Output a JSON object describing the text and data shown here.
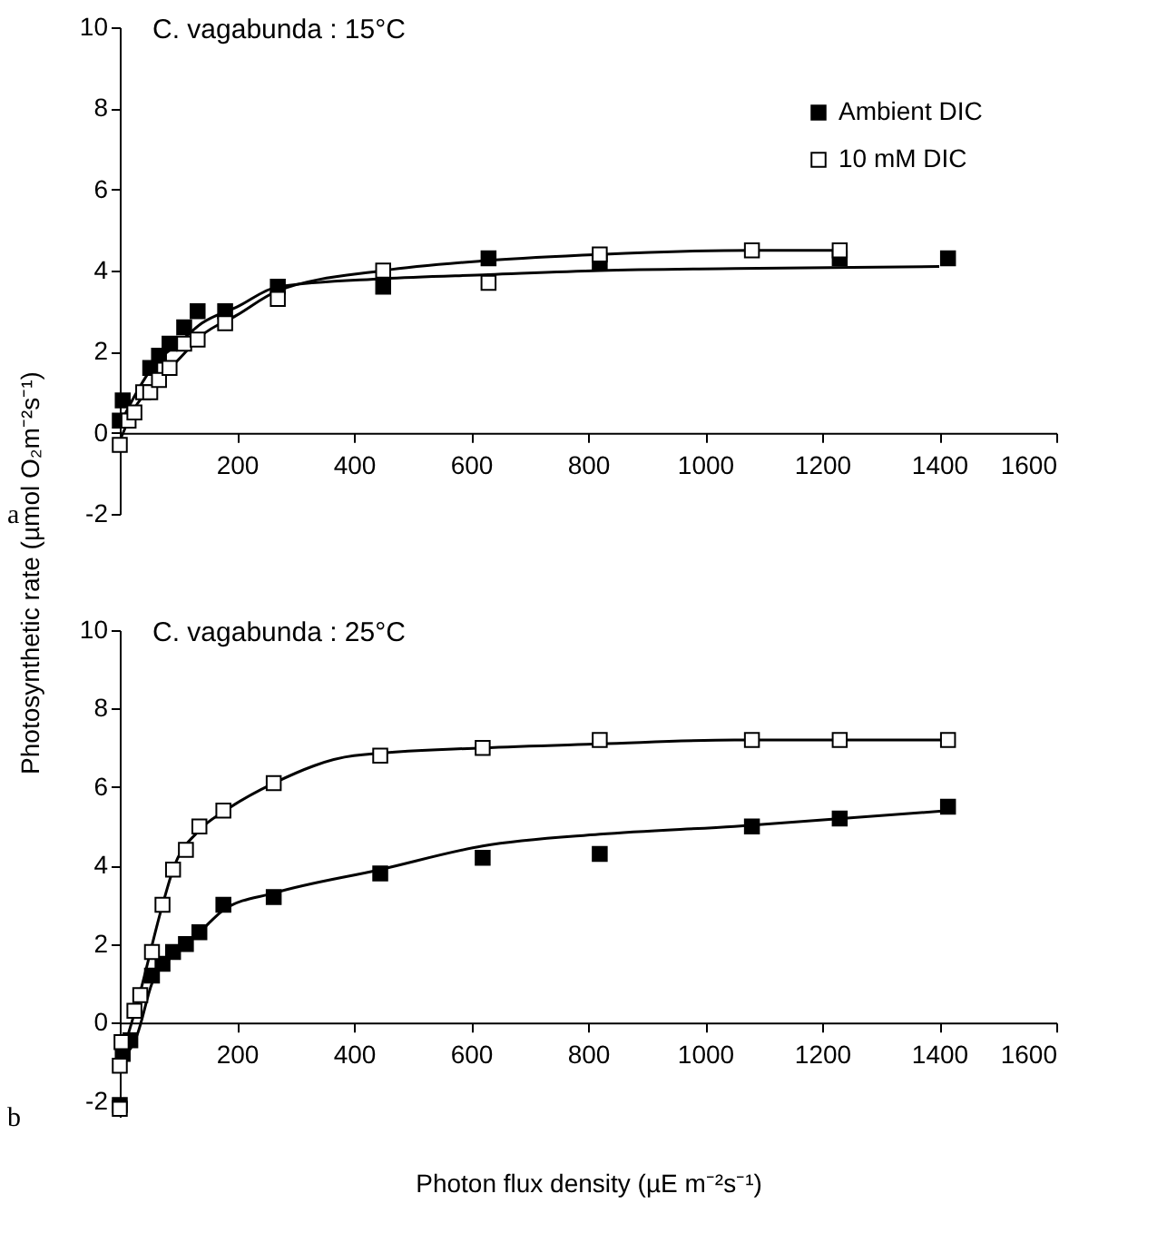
{
  "chart_data": [
    {
      "type": "scatter",
      "title": "C. vagabunda : 15°C",
      "ylabel": "Photosynthetic  rate (µmol O₂m⁻²s⁻¹)",
      "annotations": [
        "a"
      ],
      "xlim": [
        0,
        1600
      ],
      "xticks": [
        200,
        400,
        600,
        800,
        1000,
        1200,
        1400,
        1600
      ],
      "ylim": [
        -2,
        10
      ],
      "yticks": [
        -2,
        0,
        2,
        4,
        6,
        8,
        10
      ],
      "legend": "top right",
      "marker": "square",
      "line_style": "solid",
      "series": [
        {
          "name": "Ambient DIC",
          "type": "scatter",
          "color": "#000000",
          "x": [
            0,
            5,
            52,
            67,
            85,
            110,
            133,
            180,
            270,
            450,
            630,
            820,
            1230,
            1415
          ],
          "values": [
            0.3,
            0.8,
            1.6,
            1.9,
            2.2,
            2.6,
            3.0,
            3.0,
            3.6,
            3.6,
            4.3,
            4.2,
            4.3,
            4.3
          ]
        },
        {
          "name": "10 mM DIC",
          "type": "scatter",
          "color": "#ffffff",
          "x": [
            0,
            15,
            25,
            40,
            52,
            67,
            85,
            110,
            133,
            180,
            270,
            450,
            630,
            820,
            1080,
            1230
          ],
          "values": [
            -0.3,
            0.3,
            0.5,
            1.0,
            1.0,
            1.3,
            1.6,
            2.2,
            2.3,
            2.7,
            3.3,
            4.0,
            3.7,
            4.4,
            4.5,
            4.5
          ]
        },
        {
          "type": "line",
          "marker": "none",
          "color": "#000000",
          "x": [
            0,
            25,
            60,
            100,
            140,
            200,
            270,
            450,
            630,
            820,
            1050,
            1400
          ],
          "values": [
            0.2,
            0.9,
            1.7,
            2.2,
            2.7,
            3.1,
            3.6,
            3.8,
            3.9,
            4.0,
            4.05,
            4.1
          ]
        },
        {
          "type": "line",
          "marker": "none",
          "color": "#000000",
          "x": [
            0,
            25,
            60,
            100,
            140,
            200,
            270,
            450,
            630,
            820,
            1080,
            1230
          ],
          "values": [
            -0.2,
            0.6,
            1.2,
            1.8,
            2.4,
            2.9,
            3.5,
            4.0,
            4.25,
            4.4,
            4.5,
            4.5
          ]
        }
      ]
    },
    {
      "type": "scatter",
      "title": "C. vagabunda : 25°C",
      "xlabel": "Photon flux density (µE m⁻²s⁻¹)",
      "annotations": [
        "b"
      ],
      "xlim": [
        0,
        1600
      ],
      "xticks": [
        200,
        400,
        600,
        800,
        1000,
        1200,
        1400,
        1600
      ],
      "ylim": [
        -2.4,
        10
      ],
      "yticks": [
        -2,
        0,
        2,
        4,
        6,
        8,
        10
      ],
      "marker": "square",
      "line_style": "solid",
      "series": [
        {
          "name": "Ambient DIC",
          "type": "scatter",
          "color": "#000000",
          "x": [
            0,
            5,
            18,
            55,
            73,
            91,
            113,
            136,
            177,
            263,
            445,
            620,
            820,
            1080,
            1230,
            1415
          ],
          "values": [
            -2.1,
            -0.8,
            -0.45,
            1.2,
            1.5,
            1.8,
            2.0,
            2.3,
            3.0,
            3.2,
            3.8,
            4.2,
            4.3,
            5.0,
            5.2,
            5.5
          ]
        },
        {
          "name": "10 mM DIC",
          "type": "scatter",
          "color": "#ffffff",
          "x": [
            0,
            0,
            3,
            25,
            35,
            55,
            73,
            91,
            113,
            136,
            177,
            263,
            445,
            620,
            820,
            1080,
            1230,
            1415
          ],
          "values": [
            -2.2,
            -1.1,
            -0.5,
            0.3,
            0.7,
            1.8,
            3.0,
            3.9,
            4.4,
            5.0,
            5.4,
            6.1,
            6.8,
            7.0,
            7.2,
            7.2,
            7.2,
            7.2
          ]
        },
        {
          "type": "line",
          "marker": "none",
          "color": "#000000",
          "x": [
            0,
            30,
            55,
            90,
            136,
            180,
            263,
            445,
            620,
            820,
            1050,
            1415
          ],
          "values": [
            -1.0,
            -0.3,
            1.0,
            1.7,
            2.3,
            2.9,
            3.3,
            3.9,
            4.5,
            4.8,
            5.0,
            5.4
          ]
        },
        {
          "type": "line",
          "marker": "none",
          "color": "#000000",
          "x": [
            0,
            30,
            73,
            91,
            136,
            180,
            263,
            400,
            620,
            820,
            1050,
            1415
          ],
          "values": [
            -1.0,
            0.5,
            3.0,
            3.9,
            4.9,
            5.4,
            6.1,
            6.8,
            7.0,
            7.1,
            7.2,
            7.2
          ]
        }
      ]
    }
  ]
}
